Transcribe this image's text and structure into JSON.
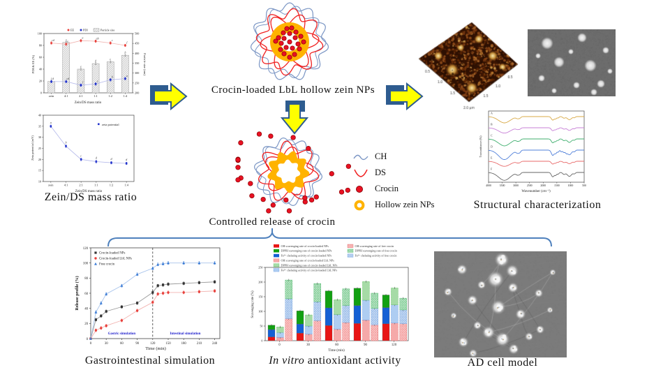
{
  "captions": {
    "zein_ds": "Zein/DS mass ratio",
    "crocin_np": "Crocin-loaded  LbL  hollow  zein  NPs",
    "controlled_release": "Controlled  release  of crocin",
    "structural": "Structural  characterization",
    "gastro": "Gastrointestinal  simulation",
    "invitro_italic": "In vitro",
    "invitro_rest": " antioxidant  activity",
    "ad_cell": "AD cell  model"
  },
  "np_legend": {
    "items": [
      {
        "icon": "ch-icon",
        "label": "CH",
        "color": "#7a95c4"
      },
      {
        "icon": "ds-icon",
        "label": "DS",
        "color": "#f02020"
      },
      {
        "icon": "crocin-icon",
        "label": "Crocin",
        "color": "#e81123"
      },
      {
        "icon": "hollow-zein-icon",
        "label": "Hollow zein NPs",
        "color": "#ffb300"
      }
    ]
  },
  "afm": {
    "ticks": [
      "0.5",
      "1.0",
      "1.5"
    ],
    "scale": "2.0 μm"
  },
  "colors": {
    "arrow_fill": "#ffff00",
    "arrow_edge": "#2e5c8f",
    "brace": "#4f81bd",
    "orange_ring": "#ffb300",
    "crocin_dot": "#e81123",
    "ch_blue": "#7a95c4",
    "ds_red": "#f02020"
  },
  "chart_data": [
    {
      "id": "pdi_ee",
      "type": "bar+scatter",
      "categories": [
        "zein",
        "4:1",
        "2:1",
        "1:1",
        "1:2",
        "1:4"
      ],
      "series": [
        {
          "name": "EE",
          "type": "scatter",
          "axis": "left",
          "color": "#e8413c",
          "values": [
            84,
            82,
            88,
            87,
            84,
            80
          ],
          "letters": [
            "cd",
            "e",
            "a",
            "ab",
            "c",
            "f"
          ]
        },
        {
          "name": "PDI",
          "type": "scatter",
          "axis": "left",
          "color": "#2233cc",
          "values": [
            19,
            19,
            13,
            15,
            22,
            24
          ],
          "letters": [
            "d",
            "cd",
            "f",
            "e",
            "b",
            "a"
          ]
        },
        {
          "name": "Particle size",
          "type": "bar",
          "axis": "right",
          "values": [
            258,
            455,
            320,
            348,
            357,
            390
          ],
          "letters": [
            "f",
            "a",
            "e",
            "d",
            "c",
            "b"
          ]
        }
      ],
      "ylabel_left": "PDI & EE (%)",
      "ylim_left": [
        0,
        100
      ],
      "yticks_left": [
        0,
        20,
        40,
        60,
        80,
        100
      ],
      "ylabel_right": "Particle size (nm)",
      "ylim_right": [
        200,
        500
      ],
      "yticks_right": [
        200,
        250,
        300,
        350,
        400,
        450,
        500
      ],
      "xlabel": "Zein/DS mass ratio",
      "grid": false
    },
    {
      "id": "zeta",
      "type": "line",
      "categories": [
        "zein",
        "4:1",
        "2:1",
        "1:1",
        "1:2",
        "1:4"
      ],
      "values": [
        35,
        26,
        20,
        19,
        18.5,
        18.2
      ],
      "letters": [
        "a",
        "b",
        "c",
        "d",
        "d",
        "d"
      ],
      "legend": "zeta potential",
      "marker_color": "#2233cc",
      "line_color": "#b3b8ea",
      "ylabel": "Zeta potential (mV)",
      "ylim": [
        10,
        40
      ],
      "yticks": [
        10,
        15,
        20,
        25,
        30,
        35,
        40
      ],
      "xlabel": "Zein/DS mass ratio",
      "grid": false
    },
    {
      "id": "ftir",
      "type": "line",
      "title": "",
      "xlabel": "Wavenumber (cm⁻¹)",
      "ylabel": "Transmittance (%)",
      "x_ticks": [
        4000,
        3500,
        3000,
        2500,
        2000,
        1500,
        1000,
        500
      ],
      "series": [
        {
          "label": "A",
          "color": "#d8a945"
        },
        {
          "label": "B",
          "color": "#c77fd6"
        },
        {
          "label": "C",
          "color": "#3faf6e"
        },
        {
          "label": "D",
          "color": "#4f7fd9"
        },
        {
          "label": "E",
          "color": "#e86a6a"
        },
        {
          "label": "F",
          "color": "#666666"
        }
      ]
    },
    {
      "id": "release",
      "type": "line",
      "x": [
        0,
        10,
        20,
        30,
        60,
        90,
        120,
        130,
        140,
        150,
        180,
        210,
        240
      ],
      "series": [
        {
          "name": "Crocin-loaded NPs",
          "color": "#333333",
          "line_color": "#999999",
          "marker": "square",
          "values": [
            0,
            25,
            30,
            36,
            42,
            47,
            61,
            70,
            71,
            72,
            73,
            74,
            75
          ]
        },
        {
          "name": "Crocin-loaded LbL NPs",
          "color": "#e8413c",
          "line_color": "#f2b3b0",
          "marker": "circle",
          "values": [
            0,
            11,
            14,
            17,
            24,
            37,
            48,
            59,
            60,
            61,
            61,
            62,
            63
          ]
        },
        {
          "name": "Free crocin",
          "color": "#3a7bd5",
          "line_color": "#a8c4ec",
          "marker": "triangle",
          "values": [
            0,
            35,
            47,
            59,
            70,
            85,
            93,
            98,
            99,
            100,
            100,
            100,
            100
          ]
        }
      ],
      "ylabel": "Release profile (%)",
      "ylim": [
        0,
        120
      ],
      "yticks": [
        0,
        20,
        40,
        60,
        80,
        100,
        120
      ],
      "xlabel": "Time (min)",
      "xticks": [
        0,
        30,
        60,
        90,
        120,
        150,
        180,
        210,
        240
      ],
      "divider_x": 120,
      "region_labels": [
        "Gastric simulation",
        "Intestinal simulation"
      ],
      "region_label_color": "#2020cc"
    },
    {
      "id": "antioxidant",
      "type": "stacked-bar",
      "categories": [
        "0",
        "30",
        "60",
        "90",
        "120"
      ],
      "ylabel": "Scavenging rate (%)",
      "ylim": [
        0,
        250
      ],
      "yticks": [
        0,
        50,
        100,
        150,
        200,
        250
      ],
      "xlabel": "Time (min)",
      "samples": [
        {
          "name": "crocin-loaded NPs",
          "style": "solid",
          "oh": [
            13,
            26,
            52,
            59,
            58
          ],
          "fe": [
            25,
            31,
            60,
            61,
            55
          ],
          "dpph": [
            15,
            45,
            58,
            59,
            43
          ]
        },
        {
          "name": "crocin-loaded LbL NPs",
          "style": "light",
          "oh": [
            11,
            22,
            39,
            70,
            60
          ],
          "fe": [
            17,
            28,
            50,
            68,
            62
          ],
          "dpph": [
            19,
            38,
            51,
            64,
            58
          ]
        },
        {
          "name": "free crocin",
          "style": "hatched",
          "oh": [
            75,
            68,
            62,
            54,
            58
          ],
          "fe": [
            68,
            65,
            58,
            56,
            47
          ],
          "dpph": [
            64,
            62,
            57,
            52,
            40
          ]
        }
      ],
      "legend": [
        "OH scavenging rate of crocin-loaded NPs",
        "DPPH scavenging rate of crocin-loaded NPs",
        "Fe²⁺ chelating activity of crocin-loaded NPs",
        "OH scavenging rate of crocin-loaded LbL NPs",
        "DPPH scavenging rate of crocin-loaded LbL NPs",
        "Fe²⁺ chelating activity of crocin-loaded LbL NPs",
        "OH scavenging rate of free crocin",
        "DPPH scavenging rate of free crocin",
        "Fe²⁺ chelating activity of free crocin"
      ],
      "seg_colors_solid": [
        "#e81515",
        "#1560d4",
        "#12a012"
      ],
      "seg_colors_light": [
        "#f5a9a9",
        "#aecdf2",
        "#a6dba6"
      ]
    }
  ]
}
